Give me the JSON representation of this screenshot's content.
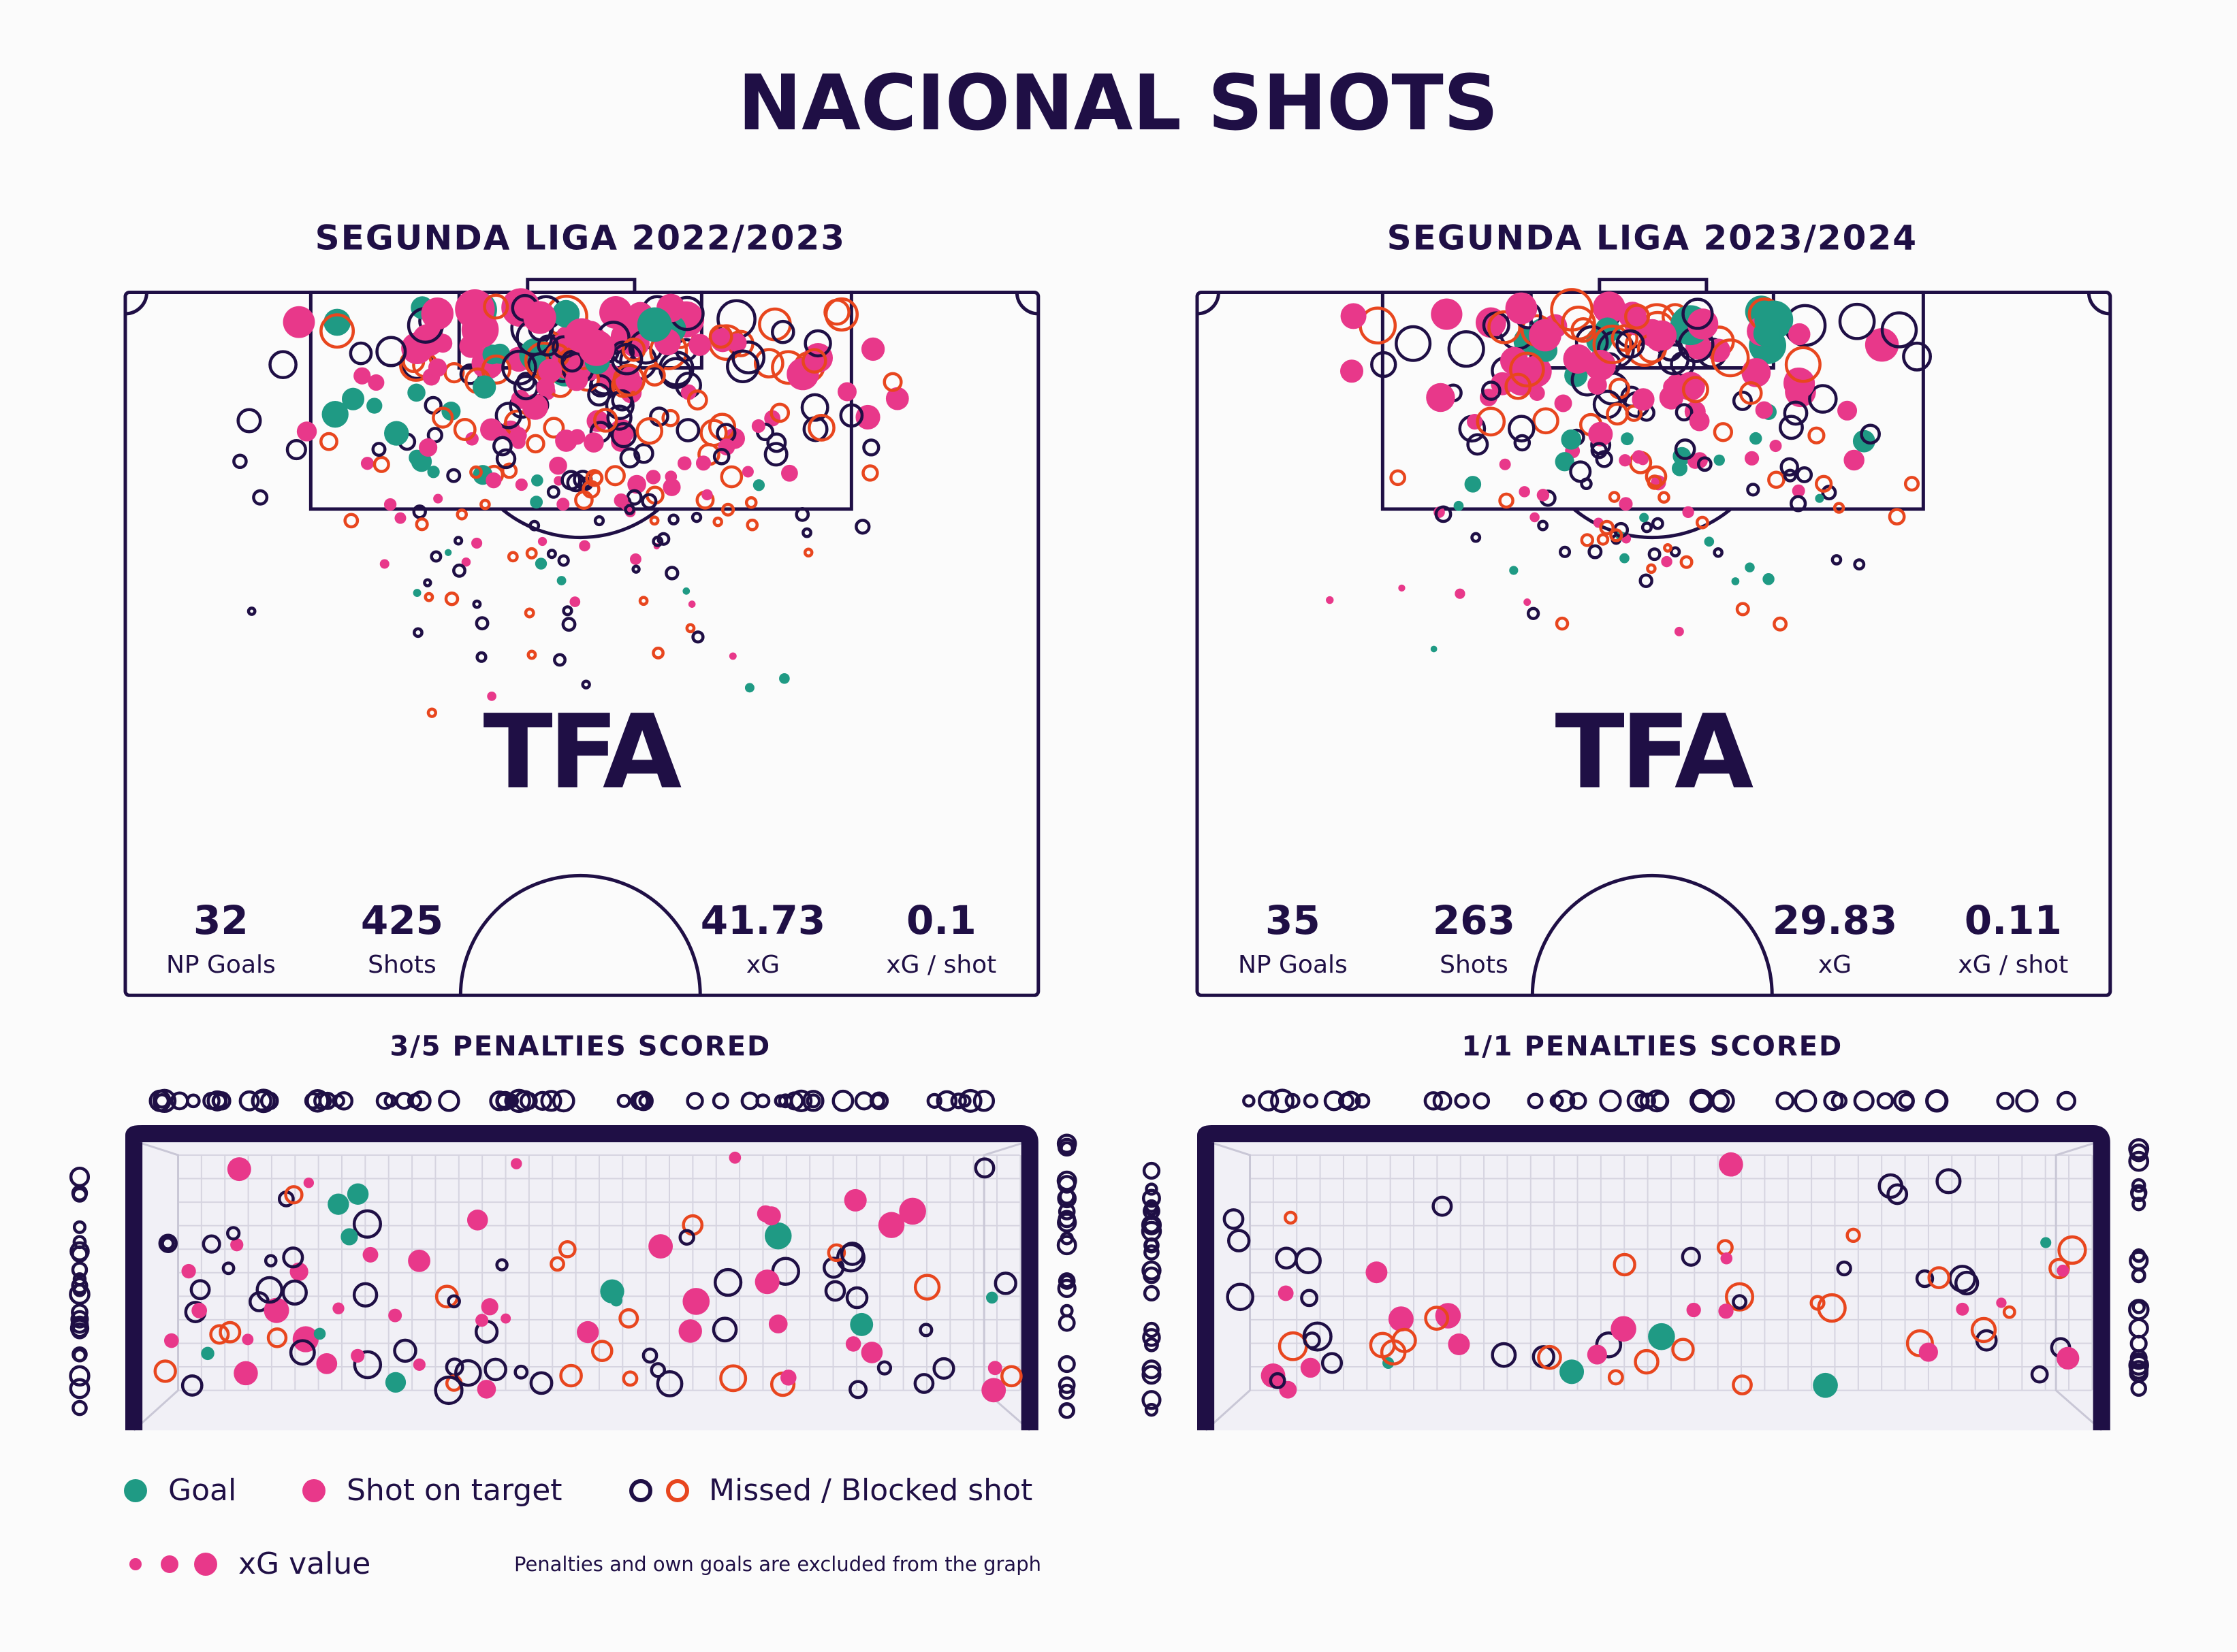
{
  "title": "NACIONAL SHOTS",
  "logo": "TFA",
  "panels": [
    {
      "season": "SEGUNDA LIGA 2022/2023",
      "stats": [
        {
          "value": 32,
          "label": "NP Goals"
        },
        {
          "value": 425,
          "label": "Shots"
        },
        {
          "value": 41.73,
          "label": "xG"
        },
        {
          "value": 0.1,
          "label": "xG / shot"
        }
      ],
      "penalties": "3/5 PENALTIES SCORED"
    },
    {
      "season": "SEGUNDA LIGA 2023/2024",
      "stats": [
        {
          "value": 35,
          "label": "NP Goals"
        },
        {
          "value": 263,
          "label": "Shots"
        },
        {
          "value": 29.83,
          "label": "xG"
        },
        {
          "value": 0.11,
          "label": "xG / shot"
        }
      ],
      "penalties": "1/1 PENALTIES SCORED"
    }
  ],
  "legend": {
    "goal": "Goal",
    "on_target": "Shot on target",
    "missed": "Missed / Blocked shot",
    "xg": "xG value",
    "note": "Penalties and own goals are excluded from the graph"
  }
}
